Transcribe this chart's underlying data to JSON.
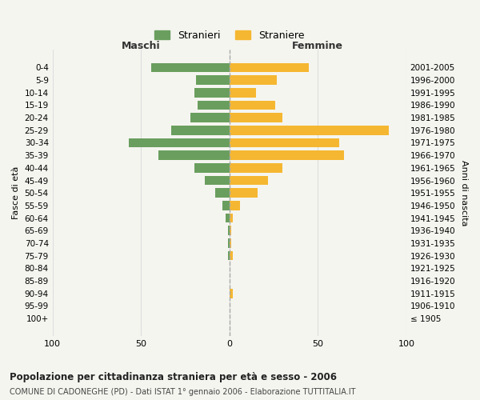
{
  "age_groups": [
    "100+",
    "95-99",
    "90-94",
    "85-89",
    "80-84",
    "75-79",
    "70-74",
    "65-69",
    "60-64",
    "55-59",
    "50-54",
    "45-49",
    "40-44",
    "35-39",
    "30-34",
    "25-29",
    "20-24",
    "15-19",
    "10-14",
    "5-9",
    "0-4"
  ],
  "birth_years": [
    "≤ 1905",
    "1906-1910",
    "1911-1915",
    "1916-1920",
    "1921-1925",
    "1926-1930",
    "1931-1935",
    "1936-1940",
    "1941-1945",
    "1946-1950",
    "1951-1955",
    "1956-1960",
    "1961-1965",
    "1966-1970",
    "1971-1975",
    "1976-1980",
    "1981-1985",
    "1986-1990",
    "1991-1995",
    "1996-2000",
    "2001-2005"
  ],
  "maschi": [
    0,
    0,
    0,
    0,
    0,
    1,
    1,
    1,
    2,
    4,
    8,
    14,
    20,
    40,
    57,
    33,
    22,
    18,
    20,
    19,
    44
  ],
  "femmine": [
    0,
    0,
    2,
    0,
    0,
    2,
    1,
    1,
    2,
    6,
    16,
    22,
    30,
    65,
    62,
    90,
    30,
    26,
    15,
    27,
    45
  ],
  "color_maschi": "#6a9e5e",
  "color_femmine": "#f5b731",
  "title": "Popolazione per cittadinanza straniera per età e sesso - 2006",
  "subtitle": "COMUNE DI CADONEGHE (PD) - Dati ISTAT 1° gennaio 2006 - Elaborazione TUTTITALIA.IT",
  "xlabel_left": "Maschi",
  "xlabel_right": "Femmine",
  "ylabel_left": "Fasce di età",
  "ylabel_right": "Anni di nascita",
  "legend_maschi": "Stranieri",
  "legend_femmine": "Straniere",
  "xlim": 100,
  "background_color": "#f5f5f0",
  "grid_color": "#dddddd"
}
